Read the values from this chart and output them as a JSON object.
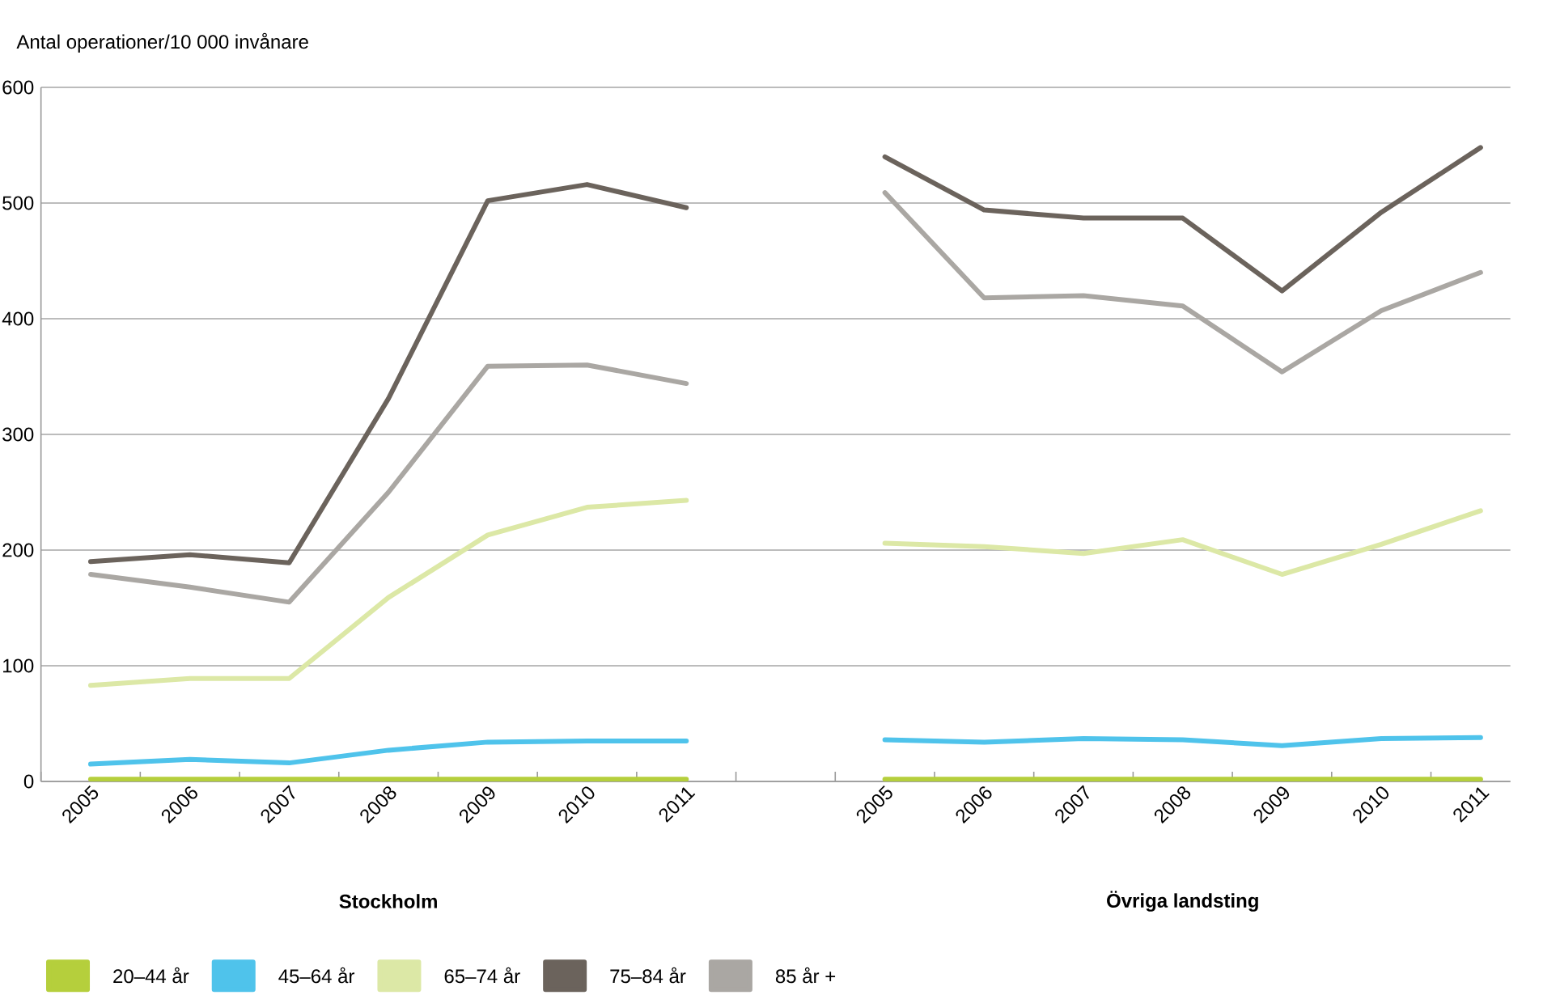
{
  "chart_data": {
    "type": "line",
    "ylabel": "Antal operationer/10 000 invånare",
    "categories": [
      "2005",
      "2006",
      "2007",
      "2008",
      "2009",
      "2010",
      "2011",
      null,
      "2005",
      "2006",
      "2007",
      "2008",
      "2009",
      "2010",
      "2011"
    ],
    "series": [
      {
        "name": "20–44 år",
        "color": "#b5cf3c",
        "values": [
          2,
          2,
          2,
          2,
          2,
          2,
          2,
          null,
          2,
          2,
          2,
          2,
          2,
          2,
          2
        ]
      },
      {
        "name": "45–64 år",
        "color": "#4fc3eb",
        "values": [
          15,
          19,
          16,
          27,
          34,
          35,
          35,
          null,
          36,
          34,
          37,
          36,
          31,
          37,
          38
        ]
      },
      {
        "name": "65–74 år",
        "color": "#dce8a6",
        "values": [
          83,
          89,
          89,
          159,
          213,
          237,
          243,
          null,
          206,
          203,
          197,
          209,
          179,
          205,
          234
        ]
      },
      {
        "name": "75–84 år",
        "color": "#6b635c",
        "values": [
          190,
          196,
          189,
          331,
          502,
          516,
          496,
          null,
          540,
          494,
          487,
          487,
          424,
          492,
          548
        ]
      },
      {
        "name": "85 år +",
        "color": "#aaa7a3",
        "values": [
          179,
          168,
          155,
          250,
          359,
          360,
          344,
          null,
          509,
          418,
          420,
          411,
          354,
          407,
          440
        ]
      }
    ],
    "ylim": [
      0,
      600
    ],
    "yticks": [
      0,
      100,
      200,
      300,
      400,
      500,
      600
    ],
    "grid": "y",
    "legend": "bottom",
    "annotations": [
      "Stockholm",
      "Övriga landsting"
    ]
  }
}
